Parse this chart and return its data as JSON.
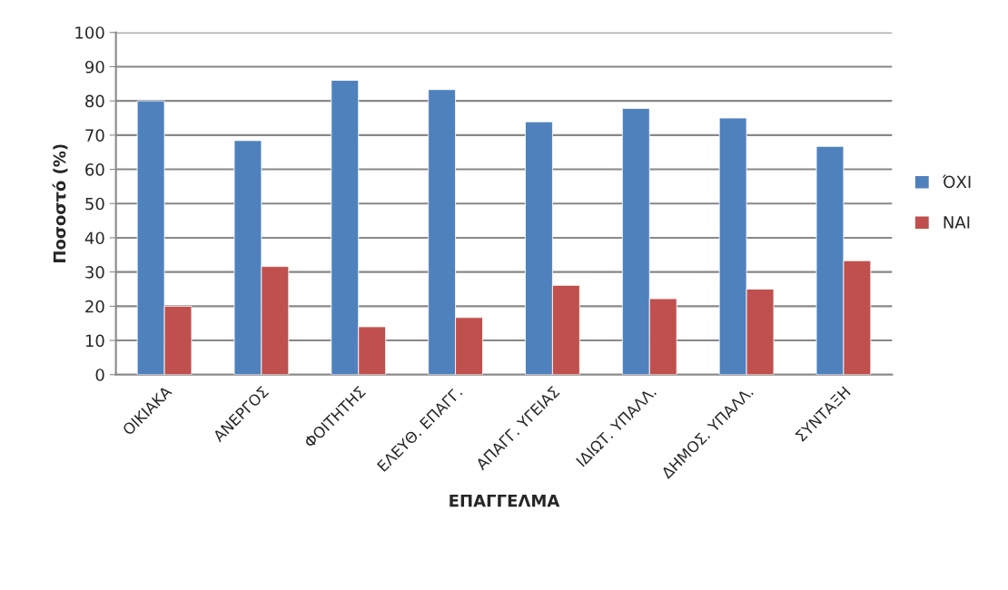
{
  "chart_data": {
    "type": "bar",
    "xlabel": "ΕΠΑΓΓΕΛΜΑ",
    "ylabel": "Ποσοστό (%)",
    "categories": [
      "ΟΙΚΙΑΚΑ",
      "ΑΝΕΡΓΟΣ",
      "ΦΟΙΤΗΤΗΣ",
      "ΕΛΕΥΘ. ΕΠΑΓΓ.",
      "ΑΠΑΓΓ. ΥΓΕΙΑΣ",
      "ΙΔΙΩΤ. ΥΠΑΛΛ.",
      "ΔΗΜΟΣ. ΥΠΑΛΛ.",
      "ΣΥΝΤΑΞΗ"
    ],
    "series": [
      {
        "name": "ΌΧΙ",
        "color": "#4f81bd",
        "values": [
          80,
          68.4,
          86,
          83.3,
          73.9,
          77.8,
          75,
          66.7
        ]
      },
      {
        "name": "ΝΑΙ",
        "color": "#c0504d",
        "values": [
          20,
          31.6,
          14,
          16.7,
          26.1,
          22.2,
          25,
          33.3
        ]
      }
    ],
    "ylim": [
      0,
      100
    ],
    "yticks": [
      0,
      10,
      20,
      30,
      40,
      50,
      60,
      70,
      80,
      90,
      100
    ],
    "grid": "y",
    "legend": "right"
  }
}
